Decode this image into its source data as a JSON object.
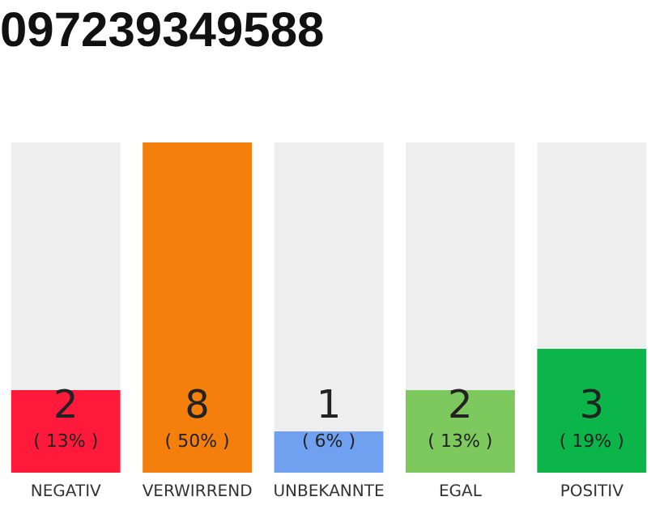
{
  "chart_data": {
    "type": "bar",
    "title": "097239349588",
    "categories": [
      "NEGATIV",
      "VERWIRREND",
      "UNBEKANNTE",
      "EGAL",
      "POSITIV"
    ],
    "values": [
      2,
      8,
      1,
      2,
      3
    ],
    "colors": [
      "#ff1a3c",
      "#f47f0c",
      "#6fa1f0",
      "#7dc95e",
      "#0bb54a"
    ],
    "value_labels": [
      "2\n( 13% )",
      "8\n( 50% )",
      "1\n( 6% )",
      "2\n( 13% )",
      "3\n( 19% )"
    ],
    "ylim": [
      0,
      8
    ],
    "grid": false,
    "legend": false,
    "tick_labels": "x"
  }
}
